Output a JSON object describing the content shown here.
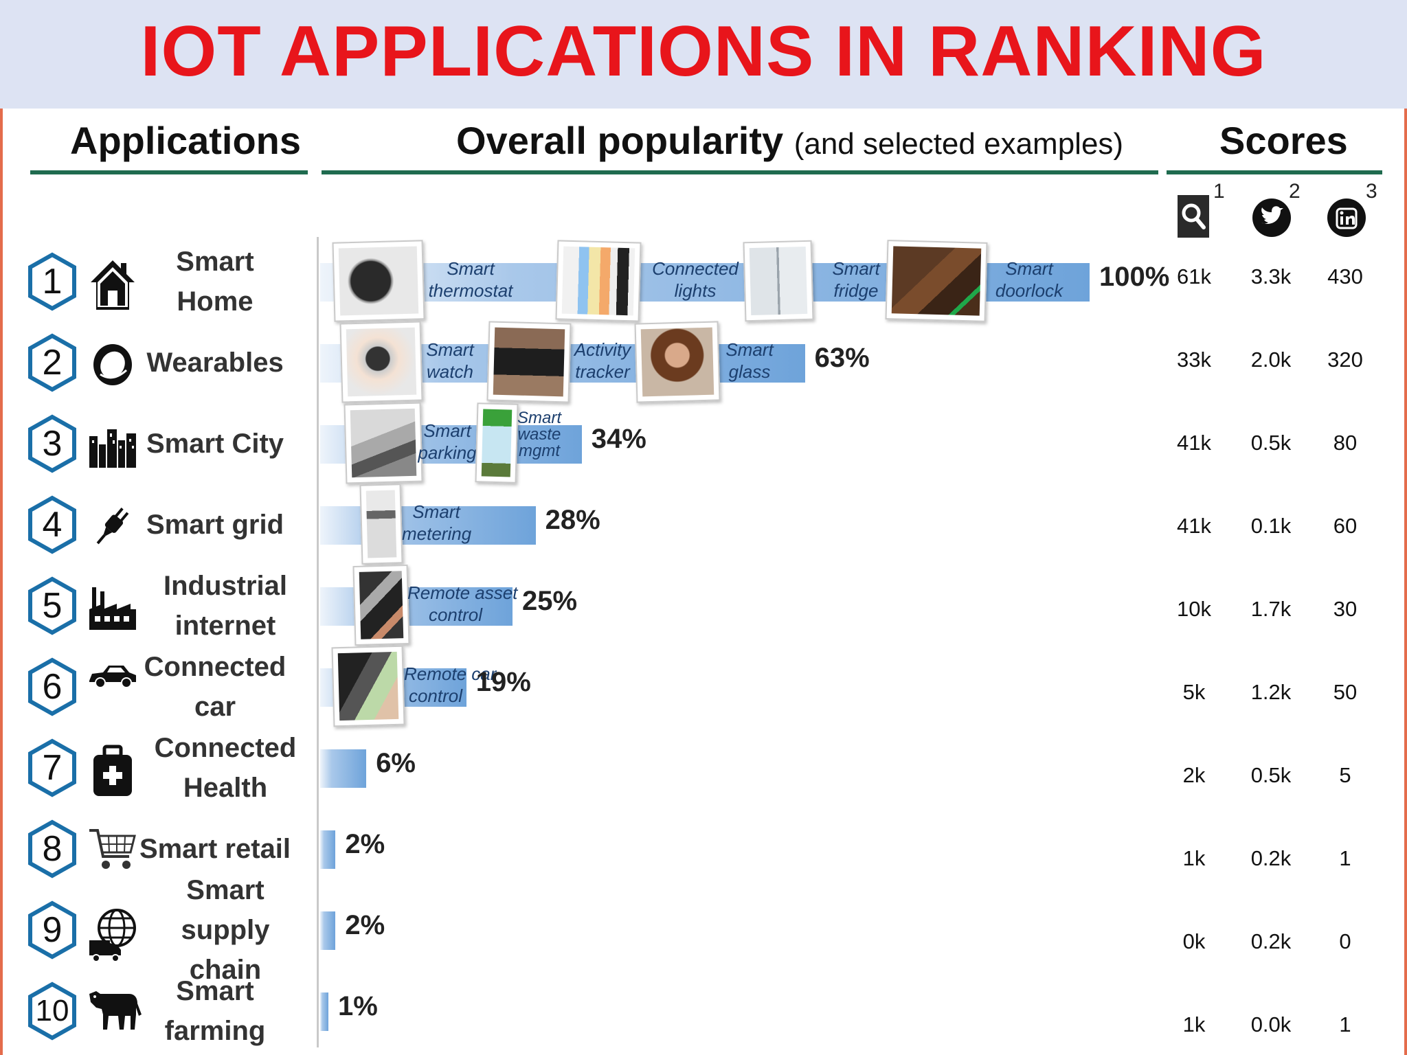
{
  "title": "IOT APPLICATIONS IN RANKING",
  "headers": {
    "applications": "Applications",
    "popularity": "Overall popularity",
    "popularity_note": "(and selected examples)",
    "scores": "Scores"
  },
  "score_sources": [
    {
      "icon": "search-icon",
      "sup": "1"
    },
    {
      "icon": "twitter-icon",
      "sup": "2"
    },
    {
      "icon": "linkedin-icon",
      "sup": "3"
    }
  ],
  "colors": {
    "title": "#e8151b",
    "banner": "#dde3f3",
    "bar": "#6ea3da",
    "rule": "#1f6b4f",
    "frame": "#e46c4c"
  },
  "chart_data": {
    "type": "bar",
    "orientation": "horizontal",
    "xlim": [
      0,
      100
    ],
    "categories": [
      "Smart Home",
      "Wearables",
      "Smart City",
      "Smart grid",
      "Industrial internet",
      "Connected car",
      "Connected Health",
      "Smart retail",
      "Smart supply chain",
      "Smart farming"
    ],
    "values": [
      100,
      63,
      34,
      28,
      25,
      19,
      6,
      2,
      2,
      1
    ]
  },
  "rows": [
    {
      "rank": "1",
      "name": "Smart Home",
      "icon": "house-icon",
      "pct": "100%",
      "value": 100,
      "examples": [
        "Smart thermostat",
        "Connected lights",
        "Smart fridge",
        "Smart doorlock"
      ],
      "scores": [
        "61k",
        "3.3k",
        "430"
      ]
    },
    {
      "rank": "2",
      "name": "Wearables",
      "icon": "ring-icon",
      "pct": "63%",
      "value": 63,
      "examples": [
        "Smart watch",
        "Activity tracker",
        "Smart glass"
      ],
      "scores": [
        "33k",
        "2.0k",
        "320"
      ]
    },
    {
      "rank": "3",
      "name": "Smart City",
      "icon": "city-icon",
      "pct": "34%",
      "value": 34,
      "examples": [
        "Smart parking",
        "Smart waste mgmt"
      ],
      "scores": [
        "41k",
        "0.5k",
        "80"
      ]
    },
    {
      "rank": "4",
      "name": "Smart grid",
      "icon": "plug-icon",
      "pct": "28%",
      "value": 28,
      "examples": [
        "Smart metering"
      ],
      "scores": [
        "41k",
        "0.1k",
        "60"
      ]
    },
    {
      "rank": "5",
      "name": "Industrial internet",
      "icon": "factory-icon",
      "pct": "25%",
      "value": 25,
      "examples": [
        "Remote asset control"
      ],
      "scores": [
        "10k",
        "1.7k",
        "30"
      ]
    },
    {
      "rank": "6",
      "name": "Connected car",
      "icon": "car-icon",
      "pct": "19%",
      "value": 19,
      "examples": [
        "Remote car control"
      ],
      "scores": [
        "5k",
        "1.2k",
        "50"
      ]
    },
    {
      "rank": "7",
      "name": "Connected Health",
      "icon": "medical-kit-icon",
      "pct": "6%",
      "value": 6,
      "examples": [],
      "scores": [
        "2k",
        "0.5k",
        "5"
      ]
    },
    {
      "rank": "8",
      "name": "Smart retail",
      "icon": "shopping-cart-icon",
      "pct": "2%",
      "value": 2,
      "examples": [],
      "scores": [
        "1k",
        "0.2k",
        "1"
      ]
    },
    {
      "rank": "9",
      "name": "Smart supply chain",
      "icon": "globe-truck-icon",
      "pct": "2%",
      "value": 2,
      "examples": [],
      "scores": [
        "0k",
        "0.2k",
        "0"
      ]
    },
    {
      "rank": "10",
      "name": "Smart farming",
      "icon": "cow-icon",
      "pct": "1%",
      "value": 1,
      "examples": [],
      "scores": [
        "1k",
        "0.0k",
        "1"
      ]
    }
  ]
}
